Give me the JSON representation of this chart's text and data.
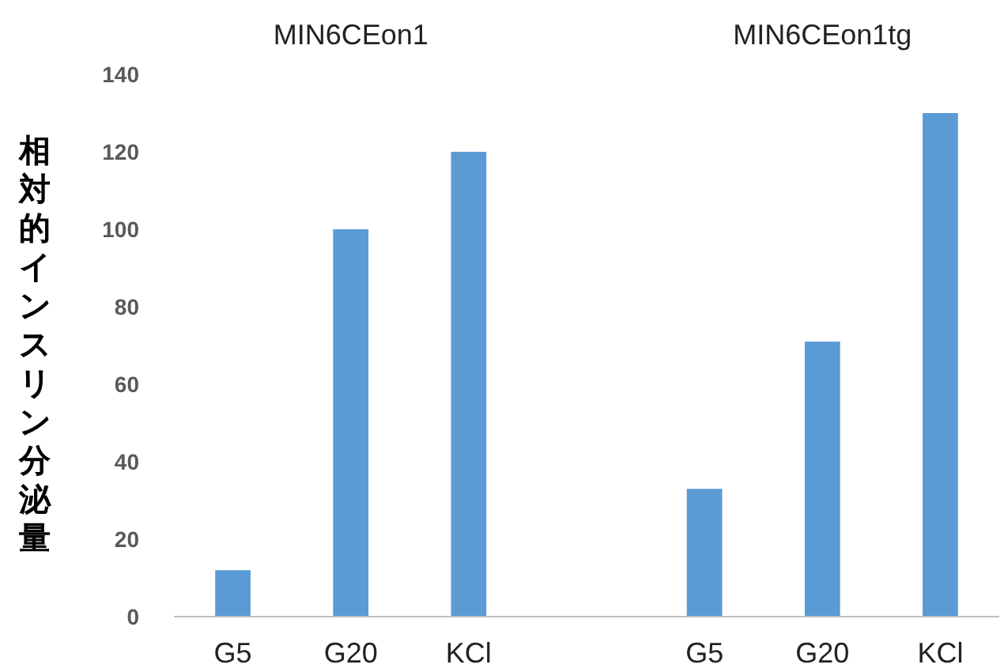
{
  "chart_data": {
    "type": "bar",
    "ylabel": "相対的インスリン分泌量",
    "categories": [
      "G5",
      "G20",
      "KCl",
      null,
      "G5",
      "G20",
      "KCl"
    ],
    "values": [
      12,
      100,
      120,
      null,
      33,
      71,
      130
    ],
    "color": "#5b9bd5",
    "ylim": [
      0,
      140
    ],
    "yticks": [
      0,
      20,
      40,
      60,
      80,
      100,
      120,
      140
    ],
    "grid": false,
    "annotations": [
      "MIN6CEon1",
      "MIN6CEon1tg"
    ]
  }
}
